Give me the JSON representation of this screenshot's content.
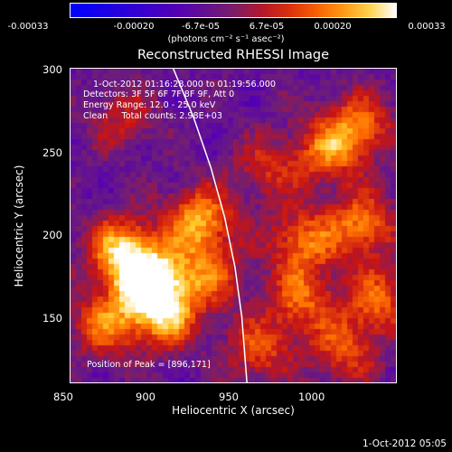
{
  "chart_data": {
    "type": "heatmap",
    "title": "Reconstructed RHESSI Image",
    "xlabel": "Heliocentric X (arcsec)",
    "ylabel": "Heliocentric Y (arcsec)",
    "xlim": [
      850,
      1040
    ],
    "ylim": [
      110,
      300
    ],
    "x_ticks": [
      "850",
      "900",
      "950",
      "1000"
    ],
    "y_ticks": [
      "150",
      "200",
      "250",
      "300"
    ],
    "colorbar": {
      "ticks": [
        "-0.00033",
        "-0.00020",
        "-6.7e-05",
        "6.7e-05",
        "0.00020",
        "0.00033"
      ],
      "units": "(photons cm⁻² s⁻¹ asec⁻²)",
      "range": [
        -0.00033,
        0.00033
      ]
    },
    "annotations": [
      "1-Oct-2012 01:16:28.000 to 01:19:56.000",
      "Detectors: 3F 5F 6F 7F 8F 9F, Att 0",
      "Energy Range: 12.0 - 25.0 keV",
      "Clean     Total counts: 2.98E+03"
    ],
    "peak_label": "Position of Peak = [896,171]",
    "peak": [
      896,
      171
    ],
    "limb_curve": [
      [
        910,
        300
      ],
      [
        922,
        270
      ],
      [
        932,
        240
      ],
      [
        940,
        210
      ],
      [
        946,
        180
      ],
      [
        950,
        150
      ],
      [
        953,
        110
      ]
    ],
    "bright_sources": [
      {
        "x": 896,
        "y": 171,
        "intensity": 1.0
      },
      {
        "x": 880,
        "y": 190,
        "intensity": 0.75
      },
      {
        "x": 925,
        "y": 208,
        "intensity": 0.7
      },
      {
        "x": 905,
        "y": 150,
        "intensity": 0.65
      },
      {
        "x": 870,
        "y": 145,
        "intensity": 0.55
      },
      {
        "x": 985,
        "y": 195,
        "intensity": 0.55
      },
      {
        "x": 1020,
        "y": 205,
        "intensity": 0.6
      },
      {
        "x": 1018,
        "y": 265,
        "intensity": 0.55
      },
      {
        "x": 1000,
        "y": 250,
        "intensity": 0.5
      },
      {
        "x": 985,
        "y": 160,
        "intensity": 0.5
      },
      {
        "x": 1010,
        "y": 130,
        "intensity": 0.45
      },
      {
        "x": 960,
        "y": 130,
        "intensity": 0.45
      },
      {
        "x": 930,
        "y": 175,
        "intensity": 0.5
      },
      {
        "x": 965,
        "y": 240,
        "intensity": 0.35
      },
      {
        "x": 880,
        "y": 270,
        "intensity": 0.3
      },
      {
        "x": 1030,
        "y": 160,
        "intensity": 0.5
      }
    ]
  },
  "footer": {
    "date": "1-Oct-2012 05:05"
  },
  "colors": {
    "background": "#000000",
    "text": "#ffffff",
    "limb": "#ffffff"
  }
}
